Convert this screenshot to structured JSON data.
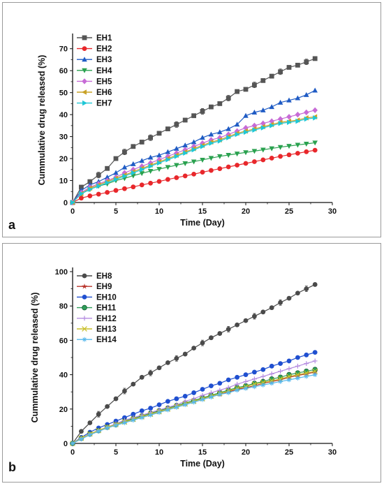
{
  "chart_data": [
    {
      "type": "line",
      "panel_label": "a",
      "xlabel": "Time (Day)",
      "ylabel": "Cummulative drug released (%)",
      "xlim": [
        0,
        30
      ],
      "ylim": [
        0,
        75
      ],
      "xticks": [
        0,
        5,
        10,
        15,
        20,
        25,
        30
      ],
      "yticks": [
        0,
        10,
        20,
        30,
        40,
        50,
        60,
        70
      ],
      "grid": false,
      "legend_position": "top-left",
      "x": [
        0,
        1,
        2,
        3,
        4,
        5,
        6,
        7,
        8,
        9,
        10,
        11,
        12,
        13,
        14,
        15,
        16,
        17,
        18,
        19,
        20,
        21,
        22,
        23,
        24,
        25,
        26,
        27,
        28
      ],
      "series": [
        {
          "name": "EH1",
          "color": "#555555",
          "marker": "square",
          "values": [
            0,
            7,
            9.5,
            12.5,
            15.5,
            20,
            23,
            25.5,
            27.5,
            29.5,
            31.5,
            33.5,
            35.5,
            37.5,
            39.5,
            41.5,
            43.5,
            45,
            47.5,
            50.5,
            51.5,
            53.5,
            55.5,
            57.5,
            59.5,
            61.5,
            62.5,
            64,
            65.5
          ]
        },
        {
          "name": "EH2",
          "color": "#e8272b",
          "marker": "circle",
          "values": [
            0,
            2,
            3,
            3.8,
            4.6,
            5.5,
            6.3,
            7.1,
            8,
            8.8,
            9.6,
            10.5,
            11.3,
            12.1,
            12.9,
            13.8,
            14.6,
            15.4,
            16.2,
            17,
            17.8,
            18.6,
            19.4,
            20.2,
            21,
            21.7,
            22.4,
            23.1,
            23.8
          ]
        },
        {
          "name": "EH3",
          "color": "#1f5bc4",
          "marker": "triangle-up",
          "values": [
            0,
            5.5,
            8,
            9.5,
            11.5,
            13.5,
            16,
            17.5,
            19,
            20.5,
            21.5,
            23,
            24.5,
            26,
            27.5,
            29.5,
            31,
            32,
            33.5,
            35.5,
            39.5,
            41,
            42,
            43.5,
            45.5,
            46.5,
            47.5,
            49,
            51
          ]
        },
        {
          "name": "EH4",
          "color": "#2aa14f",
          "marker": "triangle-down",
          "values": [
            0,
            4,
            6,
            7.5,
            8.5,
            10,
            11,
            12.2,
            13.3,
            14.3,
            15.2,
            16.1,
            17,
            17.8,
            18.6,
            19.4,
            20.2,
            21,
            21.6,
            22.2,
            22.8,
            23.4,
            24,
            24.6,
            25.2,
            25.7,
            26.2,
            26.7,
            27.2
          ]
        },
        {
          "name": "EH5",
          "color": "#c76bd6",
          "marker": "diamond",
          "values": [
            0,
            4.5,
            7,
            8.5,
            10,
            11.5,
            13.5,
            15,
            16.5,
            18,
            19.5,
            21,
            22.5,
            24,
            25.5,
            27,
            28.5,
            29.5,
            31,
            32.5,
            34,
            35,
            36,
            37,
            38,
            39,
            40,
            41,
            42
          ]
        },
        {
          "name": "EH6",
          "color": "#c9a227",
          "marker": "triangle-left",
          "values": [
            0,
            4,
            6.5,
            8,
            9.5,
            11,
            12.5,
            14,
            15.5,
            17,
            18.5,
            20,
            21.5,
            23,
            24.5,
            26,
            27.5,
            28.5,
            30,
            31.5,
            32.5,
            33.5,
            34.5,
            35.5,
            36.5,
            37,
            37.5,
            38.5,
            39
          ]
        },
        {
          "name": "EH7",
          "color": "#1fc7d6",
          "marker": "triangle-right",
          "values": [
            0,
            4,
            6,
            7.5,
            9,
            10.5,
            12,
            13.5,
            15,
            16.5,
            18,
            19.5,
            21,
            22.5,
            24,
            25.5,
            27,
            28,
            29.5,
            31,
            32,
            33,
            34,
            35,
            36,
            36.5,
            37,
            38,
            38.5
          ]
        }
      ]
    },
    {
      "type": "line",
      "panel_label": "b",
      "xlabel": "Time (Day)",
      "ylabel": "Cummulative drug released (%)",
      "xlim": [
        0,
        30
      ],
      "ylim": [
        0,
        100
      ],
      "xticks": [
        0,
        5,
        10,
        15,
        20,
        25,
        30
      ],
      "yticks": [
        0,
        20,
        40,
        60,
        80,
        100
      ],
      "grid": false,
      "legend_position": "top-left",
      "x": [
        0,
        1,
        2,
        3,
        4,
        5,
        6,
        7,
        8,
        9,
        10,
        11,
        12,
        13,
        14,
        15,
        16,
        17,
        18,
        19,
        20,
        21,
        22,
        23,
        24,
        25,
        26,
        27,
        28
      ],
      "series": [
        {
          "name": "EH8",
          "color": "#4a4a4a",
          "marker": "circle",
          "values": [
            0,
            7,
            12,
            17,
            21.5,
            26,
            30.5,
            34.5,
            38.5,
            41,
            44,
            47,
            49.5,
            52,
            55.5,
            58.5,
            61.5,
            64,
            66.5,
            69,
            71.5,
            74,
            76.5,
            79,
            82,
            84.5,
            87.5,
            90,
            92.5
          ]
        },
        {
          "name": "EH9",
          "color": "#b8342b",
          "marker": "star",
          "values": [
            0,
            3,
            5.5,
            7.5,
            9.5,
            11,
            12.5,
            14,
            15.5,
            17,
            18.5,
            20,
            21.5,
            23,
            24.5,
            26,
            27.5,
            28.5,
            30,
            31.5,
            32.5,
            33.5,
            35,
            36,
            37,
            38.5,
            39.5,
            40.5,
            41.5
          ]
        },
        {
          "name": "EH10",
          "color": "#1f4fd0",
          "marker": "circle",
          "values": [
            0,
            3.5,
            6.5,
            9,
            11,
            13,
            15,
            17,
            19,
            20.5,
            22.5,
            24.5,
            26,
            27.5,
            29.5,
            31.5,
            33.5,
            35,
            37,
            38.5,
            40,
            41.5,
            43,
            45,
            46.5,
            48,
            50,
            51.5,
            53
          ]
        },
        {
          "name": "EH11",
          "color": "#2f9e5a",
          "marker": "circle-half",
          "values": [
            0,
            3,
            5.5,
            7.5,
            9.5,
            11,
            13,
            14.5,
            16,
            17.5,
            19,
            20.5,
            22,
            23.5,
            25,
            26.5,
            28,
            29.5,
            31,
            32.5,
            33.5,
            35,
            36,
            37.5,
            38.5,
            40,
            41,
            42,
            43
          ]
        },
        {
          "name": "EH12",
          "color": "#b48be0",
          "marker": "plus",
          "values": [
            0,
            3,
            5.5,
            7.5,
            9.5,
            11.5,
            13.5,
            15,
            16.5,
            18,
            19.5,
            21,
            22.5,
            24.5,
            26,
            28,
            29.5,
            31,
            32.5,
            34.5,
            36,
            37.5,
            39,
            40.5,
            42,
            43.5,
            45,
            46.5,
            48
          ]
        },
        {
          "name": "EH13",
          "color": "#c9bf2a",
          "marker": "x",
          "values": [
            0,
            3,
            5.5,
            7.5,
            9.5,
            11,
            12.5,
            14,
            15.5,
            17,
            18.5,
            20,
            21.5,
            23,
            24.5,
            26,
            27.5,
            29,
            30.5,
            32,
            33,
            34.5,
            35.5,
            36.5,
            37.5,
            39,
            40,
            41,
            42
          ]
        },
        {
          "name": "EH14",
          "color": "#57b8ec",
          "marker": "asterisk",
          "values": [
            0,
            2.5,
            5,
            7,
            9,
            10.5,
            12,
            13.5,
            15,
            16.5,
            18,
            19.5,
            21,
            22.5,
            24,
            25.5,
            27,
            28.5,
            29.5,
            31,
            32,
            33,
            34,
            35,
            36,
            37,
            38,
            39,
            40
          ]
        }
      ]
    }
  ]
}
